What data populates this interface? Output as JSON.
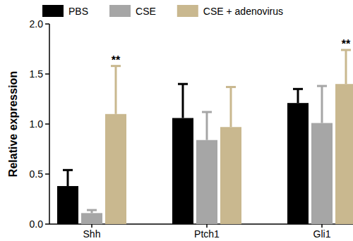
{
  "chart_data": {
    "type": "bar",
    "y_label": "Relative expression",
    "categories": [
      "Shh",
      "Ptch1",
      "Gli1"
    ],
    "series": [
      {
        "name": "PBS",
        "color": "#000000",
        "values": [
          0.38,
          1.06,
          1.21
        ],
        "errors": [
          0.16,
          0.34,
          0.14
        ]
      },
      {
        "name": "CSE",
        "color": "#a6a6a6",
        "values": [
          0.11,
          0.84,
          1.01
        ],
        "errors": [
          0.03,
          0.28,
          0.37
        ]
      },
      {
        "name": "CSE + adenovirus",
        "color": "#c9b88f",
        "values": [
          1.1,
          0.97,
          1.4
        ],
        "errors": [
          0.48,
          0.4,
          0.34
        ]
      }
    ],
    "annotations": [
      {
        "text": "**",
        "category": 0,
        "series": 2
      },
      {
        "text": "**",
        "category": 2,
        "series": 2
      }
    ],
    "ylim": [
      0,
      2.0
    ],
    "yticks": [
      {
        "value": 0,
        "label": "0.0"
      },
      {
        "value": 0.5,
        "label": "0.5"
      },
      {
        "value": 1.0,
        "label": "1.0"
      },
      {
        "value": 1.5,
        "label": "1.5"
      },
      {
        "value": 2.0,
        "label": "2.0"
      }
    ],
    "grid": false,
    "legend": "top"
  }
}
